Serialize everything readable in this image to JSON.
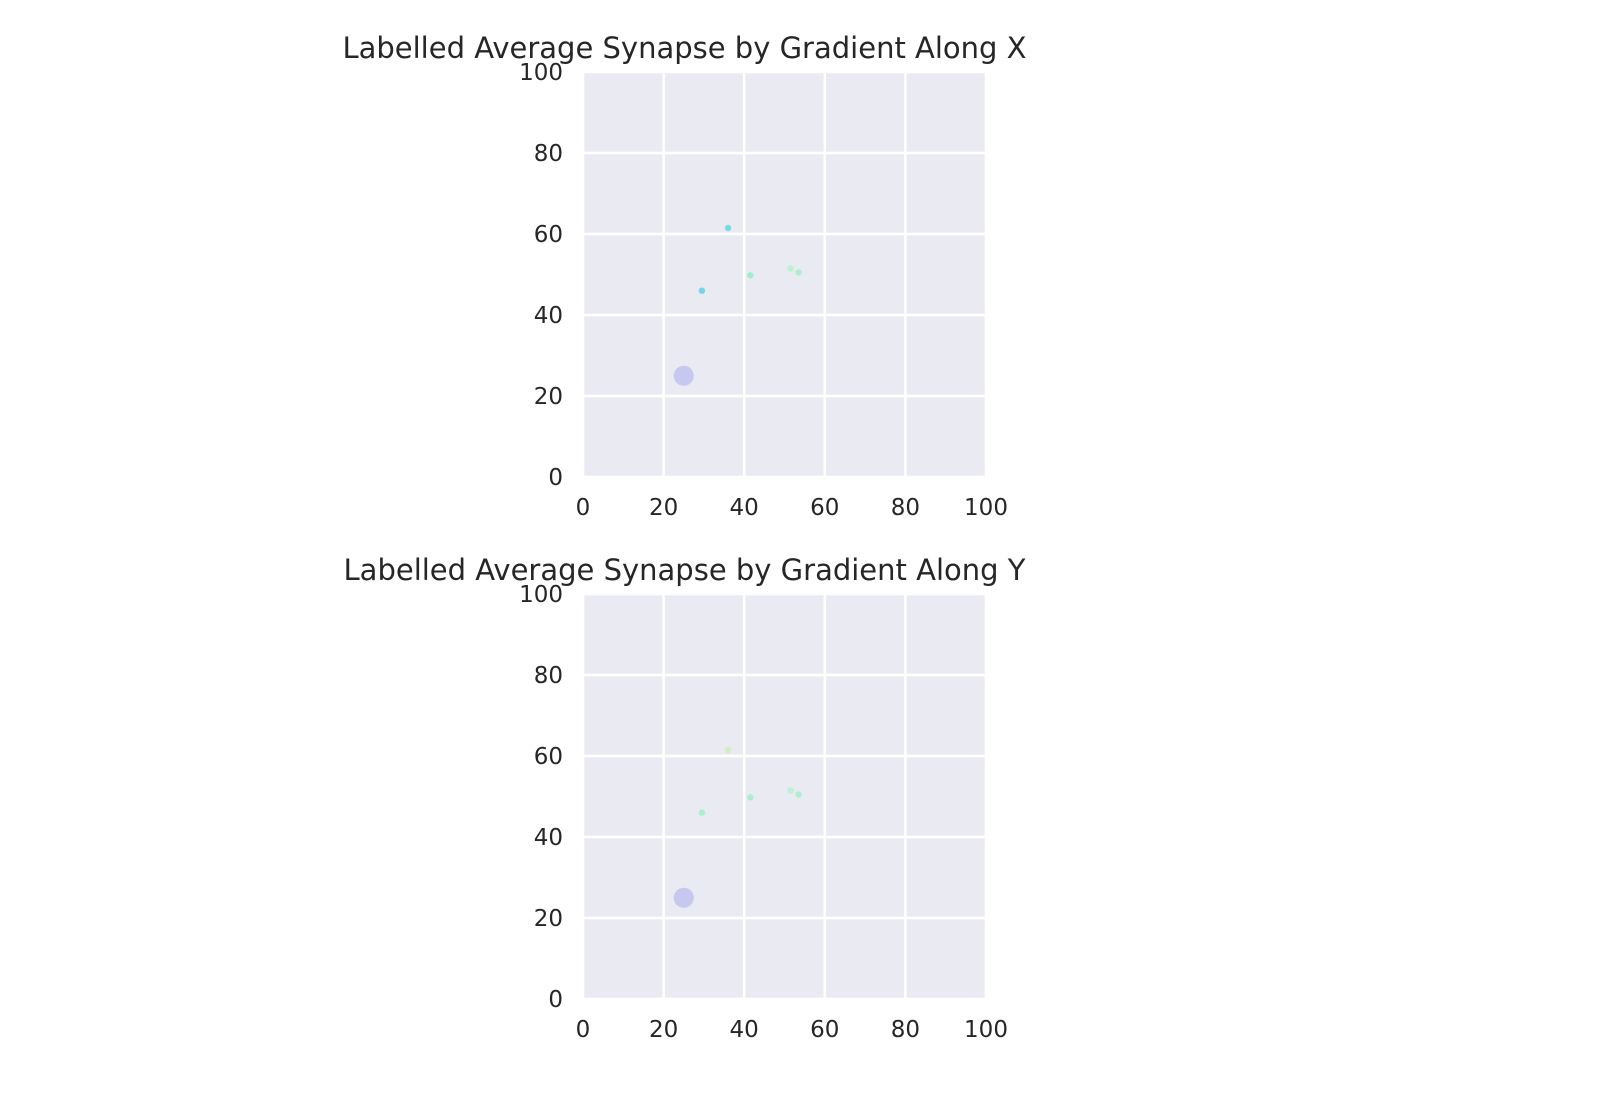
{
  "chart_data": [
    {
      "type": "scatter",
      "title": "Labelled Average Synapse by Gradient Along X",
      "xlabel": "",
      "ylabel": "",
      "xlim": [
        0,
        100
      ],
      "ylim": [
        0,
        100
      ],
      "xticks": [
        "0",
        "20",
        "40",
        "60",
        "80",
        "100"
      ],
      "yticks": [
        "0",
        "20",
        "40",
        "60",
        "80",
        "100"
      ],
      "grid": true,
      "background": "#EAEAF2",
      "points": [
        {
          "x": 25,
          "y": 25,
          "size": "large",
          "color": "#B9BCEF"
        },
        {
          "x": 29.5,
          "y": 46,
          "size": "small",
          "color": "#6FD3E6"
        },
        {
          "x": 36,
          "y": 61.5,
          "size": "small",
          "color": "#6FDCE0"
        },
        {
          "x": 41.5,
          "y": 49.8,
          "size": "small",
          "color": "#9DEDC8"
        },
        {
          "x": 51.5,
          "y": 51.5,
          "size": "small",
          "color": "#B8F2CC"
        },
        {
          "x": 53.5,
          "y": 50.5,
          "size": "small",
          "color": "#A8EFCB"
        }
      ]
    },
    {
      "type": "scatter",
      "title": "Labelled Average Synapse by Gradient Along Y",
      "xlabel": "",
      "ylabel": "",
      "xlim": [
        0,
        100
      ],
      "ylim": [
        0,
        100
      ],
      "xticks": [
        "0",
        "20",
        "40",
        "60",
        "80",
        "100"
      ],
      "yticks": [
        "0",
        "20",
        "40",
        "60",
        "80",
        "100"
      ],
      "grid": true,
      "background": "#EAEAF2",
      "points": [
        {
          "x": 25,
          "y": 25,
          "size": "large",
          "color": "#B9BCEF"
        },
        {
          "x": 29.5,
          "y": 46,
          "size": "small",
          "color": "#A9EFC9"
        },
        {
          "x": 36,
          "y": 61.5,
          "size": "small",
          "color": "#CDEFB8"
        },
        {
          "x": 41.5,
          "y": 49.8,
          "size": "small",
          "color": "#A9EFC9"
        },
        {
          "x": 51.5,
          "y": 51.5,
          "size": "small",
          "color": "#B8F2CC"
        },
        {
          "x": 53.5,
          "y": 50.5,
          "size": "small",
          "color": "#A8EFCB"
        }
      ]
    }
  ]
}
